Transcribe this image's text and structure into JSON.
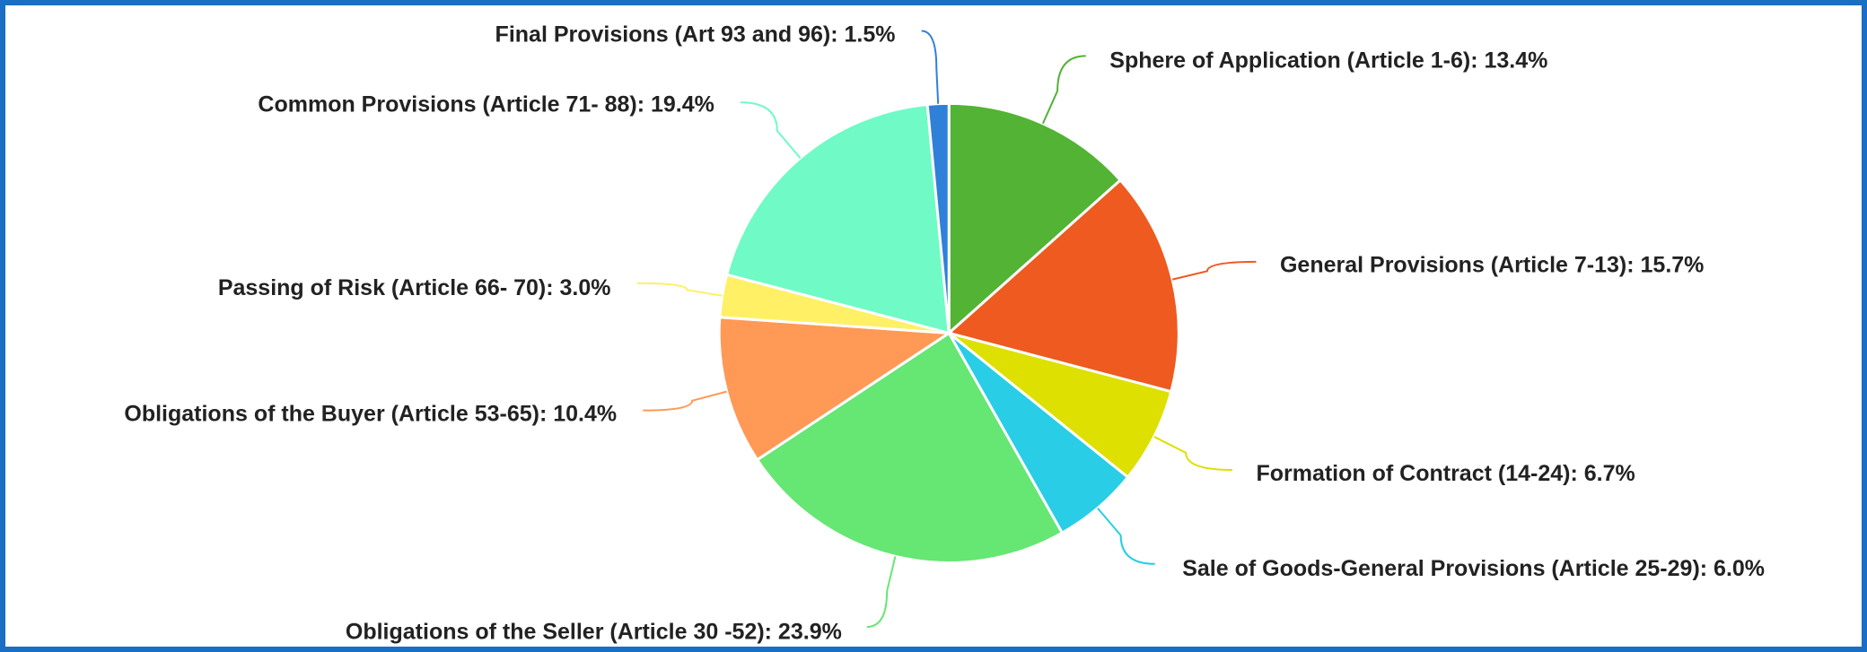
{
  "chart_data": {
    "type": "pie",
    "values": [
      13.4,
      15.7,
      6.7,
      6.0,
      23.9,
      10.4,
      3.0,
      19.4,
      1.5
    ],
    "value_labels": [
      "Sphere of Application (Article 1-6): 13.4%",
      "General Provisions (Article 7-13): 15.7%",
      "Formation of Contract (14-24): 6.7%",
      "Sale of Goods-General Provisions (Article 25-29): 6.0%",
      "Obligations of the Seller (Article 30 -52): 23.9%",
      "Obligations of the Buyer (Article 53-65): 10.4%",
      "Passing of Risk (Article 66- 70): 3.0%",
      "Common Provisions (Article 71- 88): 19.4%",
      "Final Provisions (Art 93 and 96): 1.5%"
    ],
    "colors": [
      "#52b334",
      "#ee5a1f",
      "#dde000",
      "#29cde6",
      "#66e673",
      "#ff9955",
      "#fff066",
      "#6ffac6",
      "#2f80d8"
    ]
  }
}
